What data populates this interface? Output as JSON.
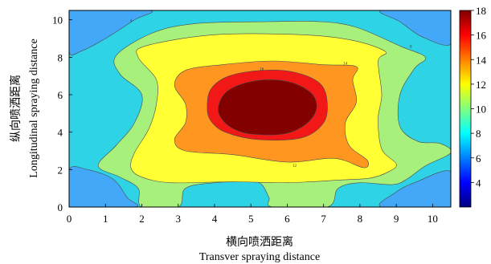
{
  "chart_data": {
    "type": "heatmap",
    "subtype": "filled-contour",
    "title": "",
    "xlabel": "横向喷洒距离",
    "xlabel_en": "Transver spraying distance",
    "ylabel": "纵向喷洒距离",
    "ylabel_en": "Longitudinal spraying distance",
    "xlim": [
      0,
      10.5
    ],
    "ylim": [
      0,
      10.5
    ],
    "x_ticks": [
      0,
      1,
      2,
      3,
      4,
      5,
      6,
      7,
      8,
      9,
      10
    ],
    "y_ticks": [
      0,
      2,
      4,
      6,
      8,
      10
    ],
    "colorbar": {
      "range": [
        2,
        18
      ],
      "ticks": [
        4,
        6,
        8,
        10,
        12,
        14,
        16,
        18
      ],
      "colormap": "jet"
    },
    "contour_levels": [
      2,
      4,
      6,
      8,
      10,
      12,
      14,
      16,
      18
    ],
    "contour_labels": [
      {
        "text": "4",
        "x": 1.7,
        "y": 9.9
      },
      {
        "text": "8",
        "x": 9.4,
        "y": 8.5
      },
      {
        "text": "14",
        "x": 7.6,
        "y": 7.6
      },
      {
        "text": "16",
        "x": 5.3,
        "y": 7.3
      },
      {
        "text": "12",
        "x": 6.2,
        "y": 2.15
      }
    ],
    "regions": [
      {
        "level": 12,
        "color": "#2ed3e6",
        "points": [
          [
            0,
            0
          ],
          [
            10.5,
            0
          ],
          [
            10.5,
            10.5
          ],
          [
            0,
            10.5
          ]
        ]
      },
      {
        "level": 4,
        "color": "#0028d0",
        "points": [
          [
            0,
            0
          ],
          [
            1.5,
            0
          ],
          [
            1.3,
            0.5
          ],
          [
            0.9,
            1.2
          ],
          [
            0.3,
            1.5
          ],
          [
            0,
            1.5
          ]
        ]
      },
      {
        "level": 4,
        "color": "#0028d0",
        "points": [
          [
            0,
            10.5
          ],
          [
            1.6,
            10.5
          ],
          [
            1.4,
            10
          ],
          [
            0.9,
            9.2
          ],
          [
            0.3,
            8.9
          ],
          [
            0,
            8.9
          ]
        ]
      },
      {
        "level": 4,
        "color": "#0028d0",
        "points": [
          [
            10.5,
            0
          ],
          [
            8.9,
            0
          ],
          [
            9.3,
            0.6
          ],
          [
            9.8,
            1.1
          ],
          [
            10.5,
            1.5
          ]
        ]
      },
      {
        "level": 4,
        "color": "#0028d0",
        "points": [
          [
            10.5,
            10.5
          ],
          [
            8.9,
            10.5
          ],
          [
            9.3,
            9.9
          ],
          [
            9.8,
            9.4
          ],
          [
            10.5,
            9.2
          ]
        ]
      },
      {
        "level": 8,
        "color": "#44a8f8",
        "points": [
          [
            0,
            0
          ],
          [
            1.8,
            0
          ],
          [
            1.6,
            0.5
          ],
          [
            1.2,
            1.5
          ],
          [
            0.5,
            2
          ],
          [
            0,
            2
          ]
        ]
      },
      {
        "level": 8,
        "color": "#44a8f8",
        "points": [
          [
            0,
            10.5
          ],
          [
            2.2,
            10.5
          ],
          [
            1.8,
            10
          ],
          [
            1,
            9
          ],
          [
            0.3,
            8.3
          ],
          [
            0,
            8.3
          ]
        ]
      },
      {
        "level": 8,
        "color": "#44a8f8",
        "points": [
          [
            10.5,
            0
          ],
          [
            8.6,
            0
          ],
          [
            9.0,
            0.8
          ],
          [
            9.5,
            1.3
          ],
          [
            10.5,
            1.9
          ]
        ]
      },
      {
        "level": 8,
        "color": "#44a8f8",
        "points": [
          [
            10.5,
            10.5
          ],
          [
            8.6,
            10.5
          ],
          [
            9.1,
            9.9
          ],
          [
            9.7,
            9.1
          ],
          [
            10.5,
            8.7
          ]
        ]
      },
      {
        "level": 10,
        "color": "#a8f07c",
        "points": [
          [
            2.0,
            0
          ],
          [
            3.0,
            0
          ],
          [
            3.2,
            1.0
          ],
          [
            4.0,
            1.3
          ],
          [
            5.0,
            1.35
          ],
          [
            5.3,
            1.2
          ],
          [
            5.5,
            0.5
          ],
          [
            5.6,
            0
          ],
          [
            7.1,
            0
          ],
          [
            7.4,
            1.0
          ],
          [
            8.0,
            1.3
          ],
          [
            8.9,
            1.2
          ],
          [
            9.3,
            1.5
          ],
          [
            9.8,
            2.2
          ],
          [
            10.5,
            2.9
          ],
          [
            10.2,
            3.4
          ],
          [
            9.6,
            3.5
          ],
          [
            9.1,
            4.3
          ],
          [
            9.1,
            6.0
          ],
          [
            9.5,
            7.4
          ],
          [
            9.8,
            8.0
          ],
          [
            9.1,
            8.6
          ],
          [
            7.9,
            9.6
          ],
          [
            6.9,
            9.9
          ],
          [
            5.5,
            9.9
          ],
          [
            3.5,
            9.8
          ],
          [
            2.3,
            9.3
          ],
          [
            1.3,
            8.1
          ],
          [
            1.4,
            7.1
          ],
          [
            2.0,
            6.0
          ],
          [
            1.8,
            4.5
          ],
          [
            1.3,
            3.3
          ],
          [
            0.8,
            2.2
          ],
          [
            1.4,
            1.6
          ],
          [
            1.9,
            1.0
          ]
        ]
      },
      {
        "level": 12,
        "color": "#ffff33",
        "points": [
          [
            2.0,
            1.6
          ],
          [
            2.8,
            1.3
          ],
          [
            4.5,
            1.35
          ],
          [
            6.0,
            1.3
          ],
          [
            7.5,
            1.45
          ],
          [
            8.3,
            1.55
          ],
          [
            8.8,
            1.9
          ],
          [
            9.0,
            2.3
          ],
          [
            8.6,
            3.1
          ],
          [
            8.5,
            4.7
          ],
          [
            8.6,
            6.0
          ],
          [
            8.5,
            7.8
          ],
          [
            8.7,
            8.3
          ],
          [
            7.8,
            8.9
          ],
          [
            6.4,
            9.2
          ],
          [
            4.0,
            9.2
          ],
          [
            2.1,
            8.6
          ],
          [
            1.9,
            8.0
          ],
          [
            2.4,
            6.8
          ],
          [
            2.4,
            5.5
          ],
          [
            2.2,
            4.2
          ],
          [
            1.8,
            2.9
          ],
          [
            1.7,
            2.1
          ]
        ]
      },
      {
        "level": 14,
        "color": "#ff9620",
        "points": [
          [
            3.2,
            3.0
          ],
          [
            4.5,
            2.8
          ],
          [
            6.0,
            2.4
          ],
          [
            7.3,
            2.6
          ],
          [
            8.1,
            2.1
          ],
          [
            8.2,
            2.5
          ],
          [
            7.7,
            3.3
          ],
          [
            7.6,
            4.5
          ],
          [
            7.9,
            5.6
          ],
          [
            7.8,
            6.8
          ],
          [
            7.9,
            7.5
          ],
          [
            7.0,
            7.6
          ],
          [
            5.6,
            7.8
          ],
          [
            4.2,
            7.6
          ],
          [
            3.2,
            7.3
          ],
          [
            2.9,
            6.5
          ],
          [
            3.2,
            5.5
          ],
          [
            3.2,
            4.5
          ],
          [
            2.9,
            3.6
          ]
        ]
      },
      {
        "level": 16,
        "color": "#f21818",
        "points": [
          [
            3.8,
            5.3
          ],
          [
            3.9,
            6.3
          ],
          [
            4.4,
            7.0
          ],
          [
            5.3,
            7.3
          ],
          [
            6.2,
            7.2
          ],
          [
            6.9,
            6.6
          ],
          [
            7.1,
            5.6
          ],
          [
            7.0,
            4.5
          ],
          [
            6.4,
            3.7
          ],
          [
            5.2,
            3.6
          ],
          [
            4.3,
            4.0
          ],
          [
            3.9,
            4.6
          ]
        ]
      },
      {
        "level": 18,
        "color": "#820000",
        "points": [
          [
            4.1,
            5.3
          ],
          [
            4.3,
            6.1
          ],
          [
            4.8,
            6.6
          ],
          [
            5.5,
            6.8
          ],
          [
            6.2,
            6.6
          ],
          [
            6.7,
            6.0
          ],
          [
            6.8,
            5.2
          ],
          [
            6.5,
            4.4
          ],
          [
            5.9,
            3.9
          ],
          [
            5.0,
            3.9
          ],
          [
            4.5,
            4.2
          ],
          [
            4.2,
            4.7
          ]
        ]
      }
    ]
  }
}
